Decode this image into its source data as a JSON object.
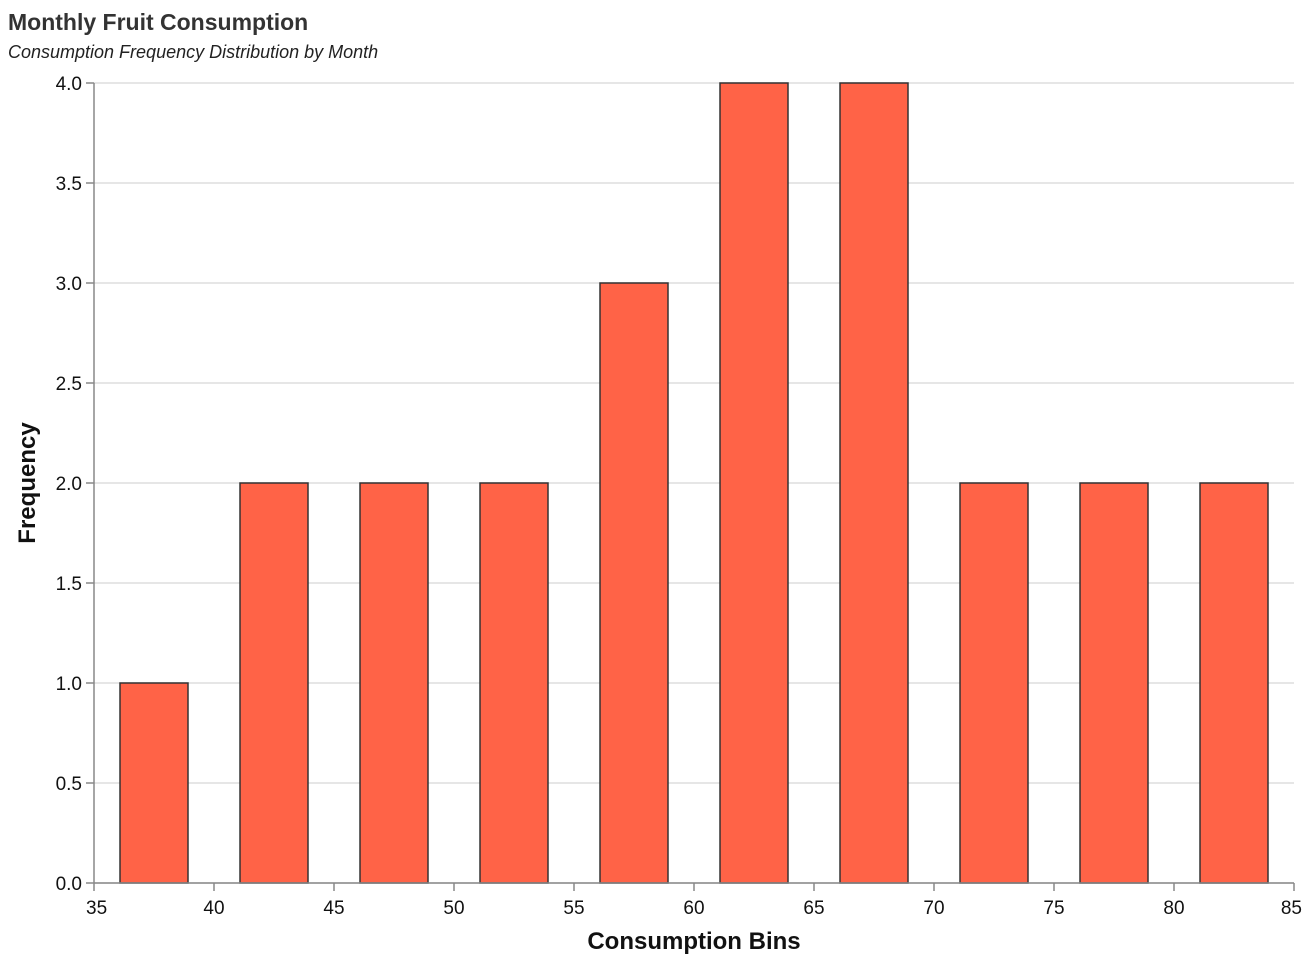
{
  "chart_data": {
    "type": "bar",
    "title": "Monthly Fruit Consumption",
    "subtitle": "Consumption Frequency Distribution by Month",
    "xlabel": "Consumption Bins",
    "ylabel": "Frequency",
    "xlim": [
      35,
      85
    ],
    "ylim": [
      0,
      4
    ],
    "x_ticks": [
      "35",
      "40",
      "45",
      "50",
      "55",
      "60",
      "65",
      "70",
      "75",
      "80",
      "85"
    ],
    "y_ticks": [
      "0.0",
      "0.5",
      "1.0",
      "1.5",
      "2.0",
      "2.5",
      "3.0",
      "3.5",
      "4.0"
    ],
    "bins": [
      {
        "start": 35,
        "end": 40,
        "value": 1
      },
      {
        "start": 40,
        "end": 45,
        "value": 2
      },
      {
        "start": 45,
        "end": 50,
        "value": 2
      },
      {
        "start": 50,
        "end": 55,
        "value": 2
      },
      {
        "start": 55,
        "end": 60,
        "value": 3
      },
      {
        "start": 60,
        "end": 65,
        "value": 4
      },
      {
        "start": 65,
        "end": 70,
        "value": 4
      },
      {
        "start": 70,
        "end": 75,
        "value": 2
      },
      {
        "start": 75,
        "end": 80,
        "value": 2
      },
      {
        "start": 80,
        "end": 85,
        "value": 2
      }
    ],
    "bar_color": "#ff6347",
    "bar_stroke": "#333333",
    "grid": true
  }
}
